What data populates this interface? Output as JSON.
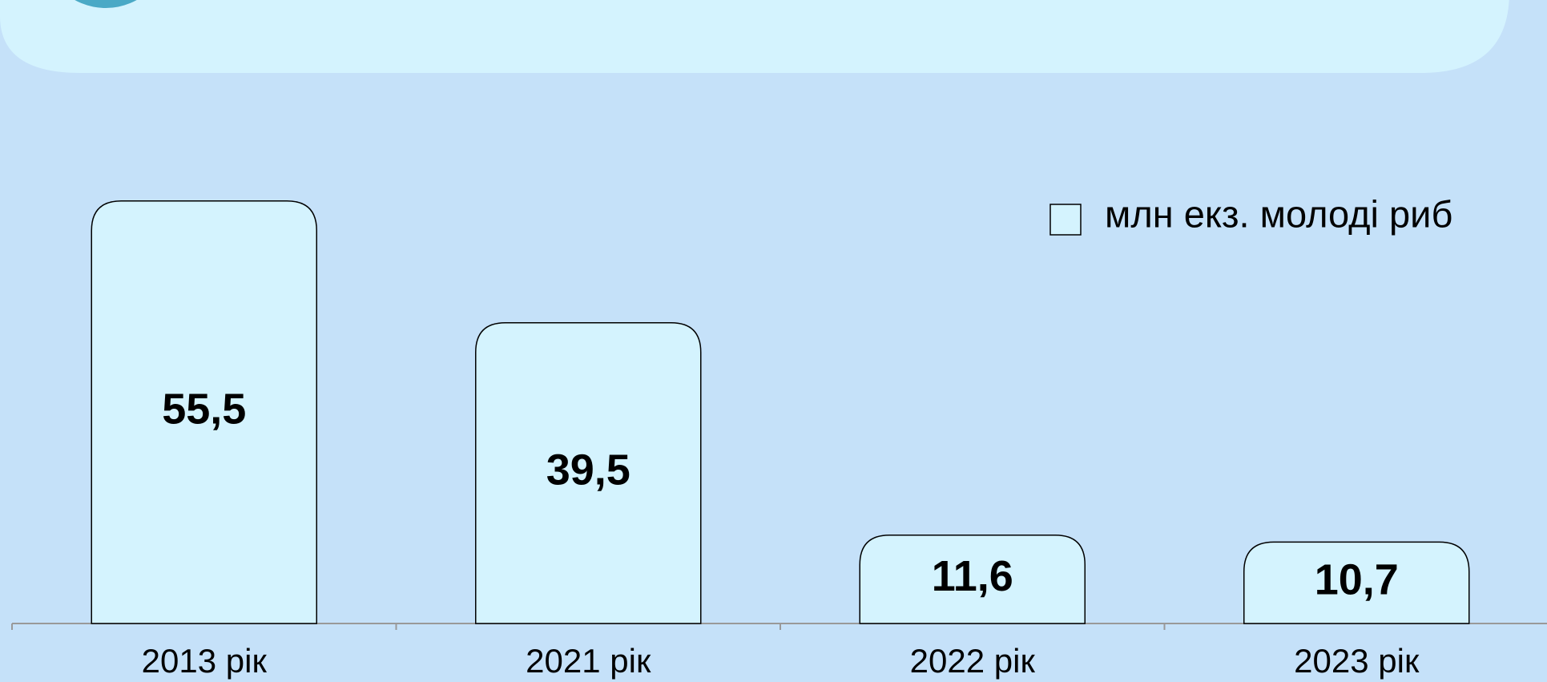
{
  "chart_data": {
    "type": "bar",
    "categories": [
      "2013 рік",
      "2021 рік",
      "2022 рік",
      "2023 рік"
    ],
    "series": [
      {
        "name": "млн екз. молоді риб",
        "color": "#d4f3fe",
        "values": [
          55.5,
          39.5,
          11.6,
          10.7
        ],
        "value_labels": [
          "55,5",
          "39,5",
          "11,6",
          "10,7"
        ]
      }
    ]
  }
}
